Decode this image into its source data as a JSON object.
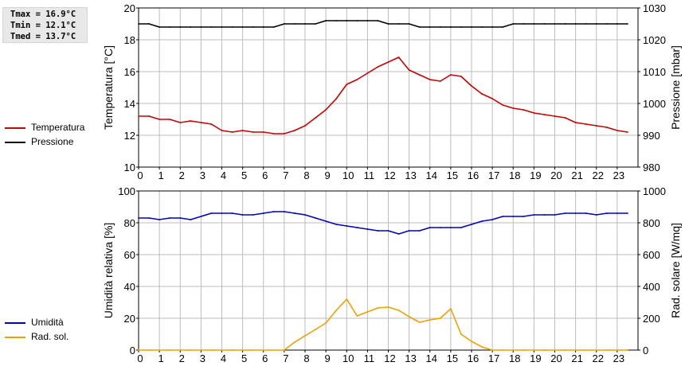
{
  "stats": {
    "tmax": "Tmax = 16.9°C",
    "tmin": "Tmin = 12.1°C",
    "tmed": "Tmed = 13.7°C"
  },
  "legend_top": [
    {
      "label": "Temperatura",
      "color": "#cc0000"
    },
    {
      "label": "Pressione",
      "color": "#000000"
    }
  ],
  "legend_bottom": [
    {
      "label": "Umidità",
      "color": "#0000cc"
    },
    {
      "label": "Rad. sol.",
      "color": "#f0a000"
    }
  ],
  "chart_data": [
    {
      "type": "line",
      "xlabel": "",
      "ylabel": "Temperatura [°C]",
      "y2label": "Pressione [mbar]",
      "xlim": [
        0,
        24
      ],
      "ylim": [
        10,
        20
      ],
      "y2lim": [
        980,
        1030
      ],
      "xticks": [
        "0",
        "1",
        "2",
        "3",
        "4",
        "5",
        "6",
        "7",
        "8",
        "9",
        "10",
        "11",
        "12",
        "13",
        "14",
        "15",
        "16",
        "17",
        "18",
        "19",
        "20",
        "21",
        "22",
        "23"
      ],
      "yticks": [
        "10",
        "12",
        "14",
        "16",
        "18",
        "20"
      ],
      "y2ticks": [
        "980",
        "990",
        "1000",
        "1010",
        "1020",
        "1030"
      ],
      "grid": true,
      "legend": "left",
      "series": [
        {
          "name": "Temperatura",
          "axis": "left",
          "color": "#cc0000",
          "x": [
            0,
            0.5,
            1,
            1.5,
            2,
            2.5,
            3,
            3.5,
            4,
            4.5,
            5,
            5.5,
            6,
            6.5,
            7,
            7.5,
            8,
            8.5,
            9,
            9.5,
            10,
            10.5,
            11,
            11.5,
            12,
            12.5,
            13,
            13.5,
            14,
            14.5,
            15,
            15.5,
            16,
            16.5,
            17,
            17.5,
            18,
            18.5,
            19,
            19.5,
            20,
            20.5,
            21,
            21.5,
            22,
            22.5,
            23,
            23.5
          ],
          "y": [
            13.2,
            13.2,
            13.0,
            13.0,
            12.8,
            12.9,
            12.8,
            12.7,
            12.3,
            12.2,
            12.3,
            12.2,
            12.2,
            12.1,
            12.1,
            12.3,
            12.6,
            13.1,
            13.6,
            14.3,
            15.2,
            15.5,
            15.9,
            16.3,
            16.6,
            16.9,
            16.1,
            15.8,
            15.5,
            15.4,
            15.8,
            15.7,
            15.1,
            14.6,
            14.3,
            13.9,
            13.7,
            13.6,
            13.4,
            13.3,
            13.2,
            13.1,
            12.8,
            12.7,
            12.6,
            12.5,
            12.3,
            12.2
          ]
        },
        {
          "name": "Pressione",
          "axis": "right",
          "color": "#000000",
          "x": [
            0,
            0.5,
            1,
            1.5,
            2,
            2.5,
            3,
            3.5,
            4,
            4.5,
            5,
            5.5,
            6,
            6.5,
            7,
            7.5,
            8,
            8.5,
            9,
            9.5,
            10,
            10.5,
            11,
            11.5,
            12,
            12.5,
            13,
            13.5,
            14,
            14.5,
            15,
            15.5,
            16,
            16.5,
            17,
            17.5,
            18,
            18.5,
            19,
            19.5,
            20,
            20.5,
            21,
            21.5,
            22,
            22.5,
            23,
            23.5
          ],
          "y": [
            1025,
            1025,
            1024,
            1024,
            1024,
            1024,
            1024,
            1024,
            1024,
            1024,
            1024,
            1024,
            1024,
            1024,
            1025,
            1025,
            1025,
            1025,
            1026,
            1026,
            1026,
            1026,
            1026,
            1026,
            1025,
            1025,
            1025,
            1024,
            1024,
            1024,
            1024,
            1024,
            1024,
            1024,
            1024,
            1024,
            1025,
            1025,
            1025,
            1025,
            1025,
            1025,
            1025,
            1025,
            1025,
            1025,
            1025,
            1025
          ]
        }
      ]
    },
    {
      "type": "line",
      "xlabel": "",
      "ylabel": "Umidità relativa [%]",
      "y2label": "Rad. solare [W/mq]",
      "xlim": [
        0,
        24
      ],
      "ylim": [
        0,
        100
      ],
      "y2lim": [
        0,
        1000
      ],
      "xticks": [
        "0",
        "1",
        "2",
        "3",
        "4",
        "5",
        "6",
        "7",
        "8",
        "9",
        "10",
        "11",
        "12",
        "13",
        "14",
        "15",
        "16",
        "17",
        "18",
        "19",
        "20",
        "21",
        "22",
        "23"
      ],
      "yticks": [
        "0",
        "20",
        "40",
        "60",
        "80",
        "100"
      ],
      "y2ticks": [
        "0",
        "200",
        "400",
        "600",
        "800",
        "1000"
      ],
      "grid": true,
      "legend": "left",
      "series": [
        {
          "name": "Umidità",
          "axis": "left",
          "color": "#0000cc",
          "x": [
            0,
            0.5,
            1,
            1.5,
            2,
            2.5,
            3,
            3.5,
            4,
            4.5,
            5,
            5.5,
            6,
            6.5,
            7,
            7.5,
            8,
            8.5,
            9,
            9.5,
            10,
            10.5,
            11,
            11.5,
            12,
            12.5,
            13,
            13.5,
            14,
            14.5,
            15,
            15.5,
            16,
            16.5,
            17,
            17.5,
            18,
            18.5,
            19,
            19.5,
            20,
            20.5,
            21,
            21.5,
            22,
            22.5,
            23,
            23.5
          ],
          "y": [
            83,
            83,
            82,
            83,
            83,
            82,
            84,
            86,
            86,
            86,
            85,
            85,
            86,
            87,
            87,
            86,
            85,
            83,
            81,
            79,
            78,
            77,
            76,
            75,
            75,
            73,
            75,
            75,
            77,
            77,
            77,
            77,
            79,
            81,
            82,
            84,
            84,
            84,
            85,
            85,
            85,
            86,
            86,
            86,
            85,
            86,
            86,
            86
          ]
        },
        {
          "name": "Rad. sol.",
          "axis": "right",
          "color": "#f0a000",
          "x": [
            0,
            0.5,
            1,
            1.5,
            2,
            2.5,
            3,
            3.5,
            4,
            4.5,
            5,
            5.5,
            6,
            6.5,
            7,
            7.5,
            8,
            8.5,
            9,
            9.5,
            10,
            10.5,
            11,
            11.5,
            12,
            12.5,
            13,
            13.5,
            14,
            14.5,
            15,
            15.5,
            16,
            16.5,
            17,
            17.5,
            18,
            18.5,
            19,
            19.5,
            20,
            20.5,
            21,
            21.5,
            22,
            22.5,
            23,
            23.5
          ],
          "y": [
            0,
            0,
            0,
            0,
            0,
            0,
            0,
            0,
            0,
            0,
            0,
            0,
            0,
            0,
            0,
            50,
            90,
            130,
            170,
            250,
            320,
            215,
            240,
            265,
            270,
            250,
            210,
            175,
            190,
            200,
            260,
            100,
            55,
            20,
            0,
            0,
            0,
            0,
            0,
            0,
            0,
            0,
            0,
            0,
            0,
            0,
            0,
            0
          ]
        }
      ]
    }
  ]
}
